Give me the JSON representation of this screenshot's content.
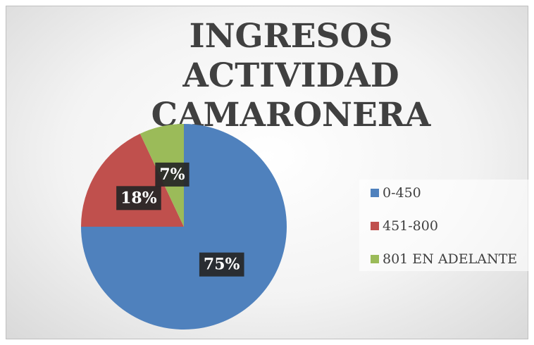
{
  "chart_data": {
    "type": "pie",
    "title": "INGRESOS ACTIVIDAD CAMARONERA",
    "categories": [
      "0-450",
      "451-800",
      "801 EN ADELANTE"
    ],
    "values": [
      75,
      18,
      7
    ],
    "value_labels": [
      "75%",
      "18%",
      "7%"
    ],
    "colors": [
      "#4f81bd",
      "#c0504d",
      "#9bbb59"
    ],
    "legend": "right"
  }
}
